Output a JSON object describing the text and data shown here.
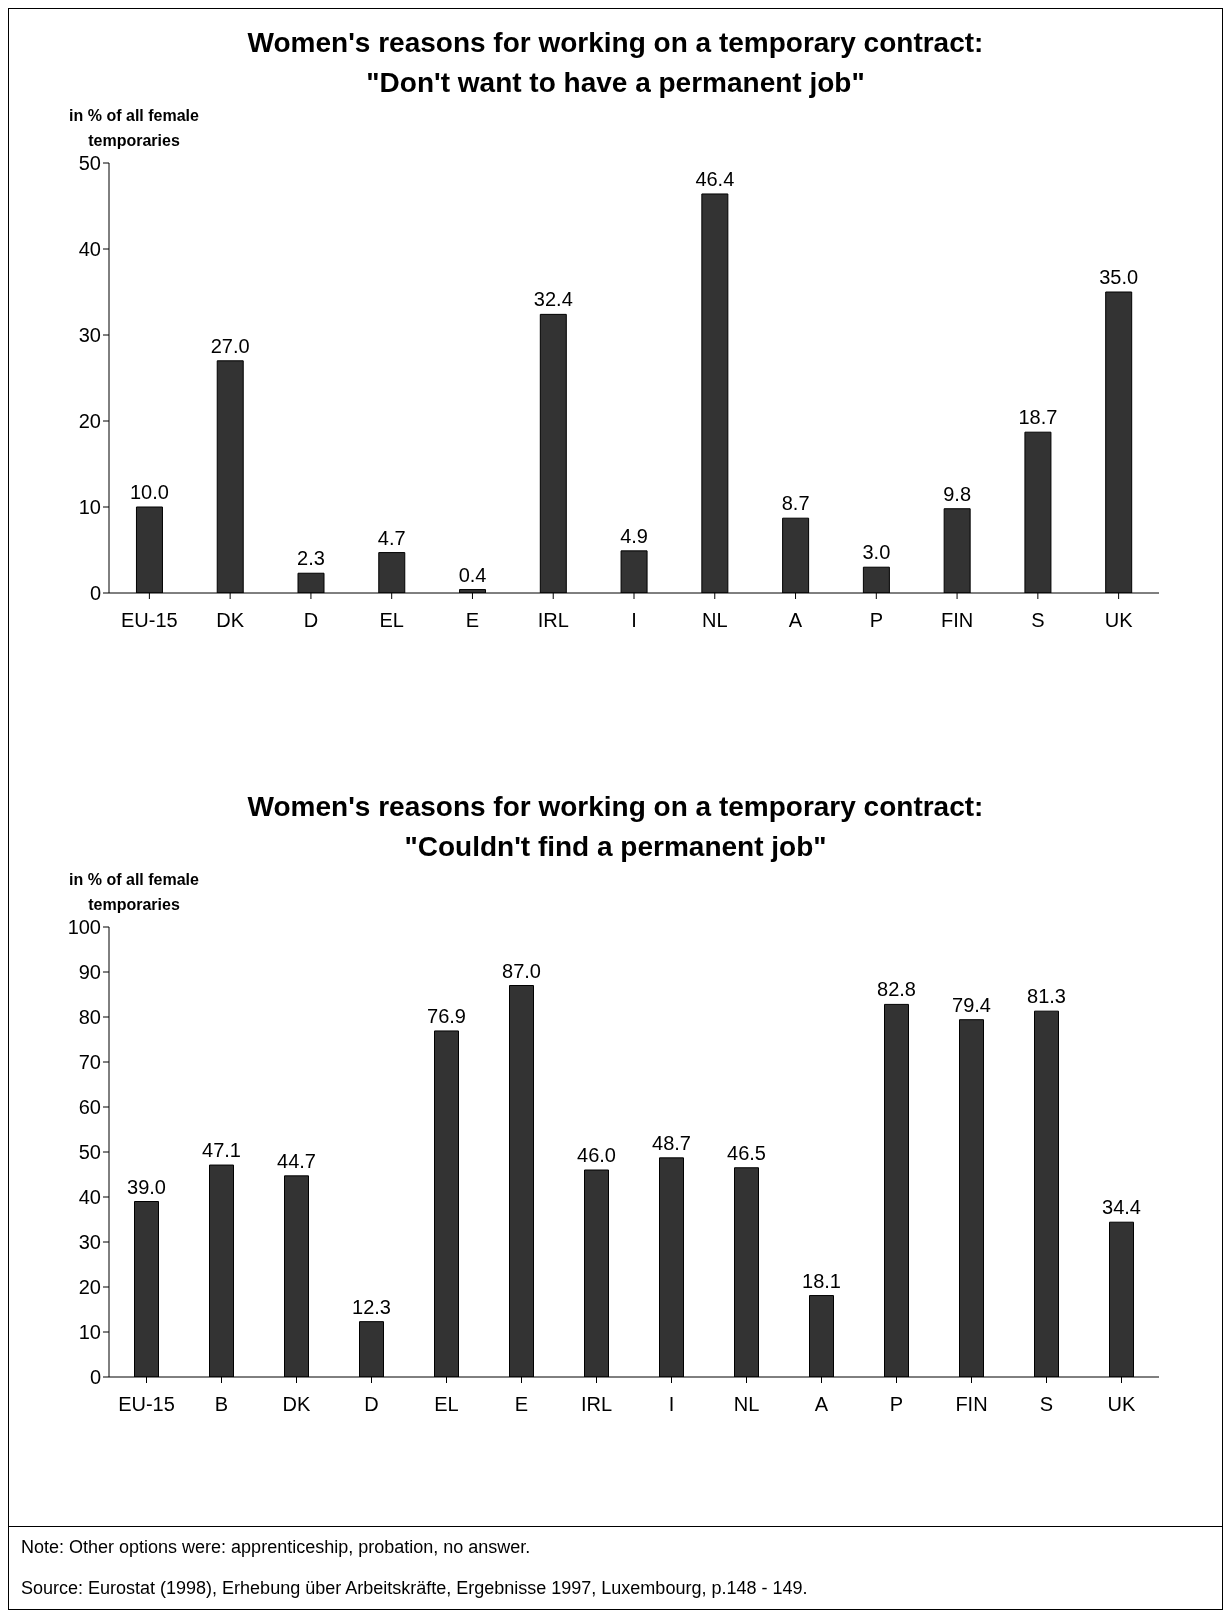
{
  "chart_data": [
    {
      "type": "bar",
      "title": "Women's reasons for working on a temporary contract:\n\"Don't want to have a permanent job\"",
      "ylabel": "in % of all female temporaries",
      "categories": [
        "EU-15",
        "DK",
        "D",
        "EL",
        "E",
        "IRL",
        "I",
        "NL",
        "A",
        "P",
        "FIN",
        "S",
        "UK"
      ],
      "values": [
        10.0,
        27.0,
        2.3,
        4.7,
        0.4,
        32.4,
        4.9,
        46.4,
        8.7,
        3.0,
        9.8,
        18.7,
        35.0
      ],
      "value_labels": [
        "10.0",
        "27.0",
        "2.3",
        "4.7",
        "0.4",
        "32.4",
        "4.9",
        "46.4",
        "8.7",
        "3.0",
        "9.8",
        "18.7",
        "35.0"
      ],
      "color": "#333333",
      "ylim": [
        0,
        50
      ],
      "yticks": [
        0,
        10,
        20,
        30,
        40,
        50
      ],
      "grid": false,
      "legend": false
    },
    {
      "type": "bar",
      "title": "Women's reasons for working on a temporary contract:\n\"Couldn't find a permanent job\"",
      "ylabel": "in % of all female temporaries",
      "categories": [
        "EU-15",
        "B",
        "DK",
        "D",
        "EL",
        "E",
        "IRL",
        "I",
        "NL",
        "A",
        "P",
        "FIN",
        "S",
        "UK"
      ],
      "values": [
        39.0,
        47.1,
        44.7,
        12.3,
        76.9,
        87.0,
        46.0,
        48.7,
        46.5,
        18.1,
        82.8,
        79.4,
        81.3,
        34.4
      ],
      "value_labels": [
        "39.0",
        "47.1",
        "44.7",
        "12.3",
        "76.9",
        "87.0",
        "46.0",
        "48.7",
        "46.5",
        "18.1",
        "82.8",
        "79.4",
        "81.3",
        "34.4"
      ],
      "color": "#333333",
      "ylim": [
        0,
        100
      ],
      "yticks": [
        0,
        10,
        20,
        30,
        40,
        50,
        60,
        70,
        80,
        90,
        100
      ],
      "grid": false,
      "legend": false,
      "annotations": [
        "Note: Other options were: apprenticeship, probation, no answer.",
        "Source: Eurostat (1998), Erhebung über Arbeitskräfte, Ergebnisse 1997, Luxembourg, p.148 - 149."
      ]
    }
  ]
}
